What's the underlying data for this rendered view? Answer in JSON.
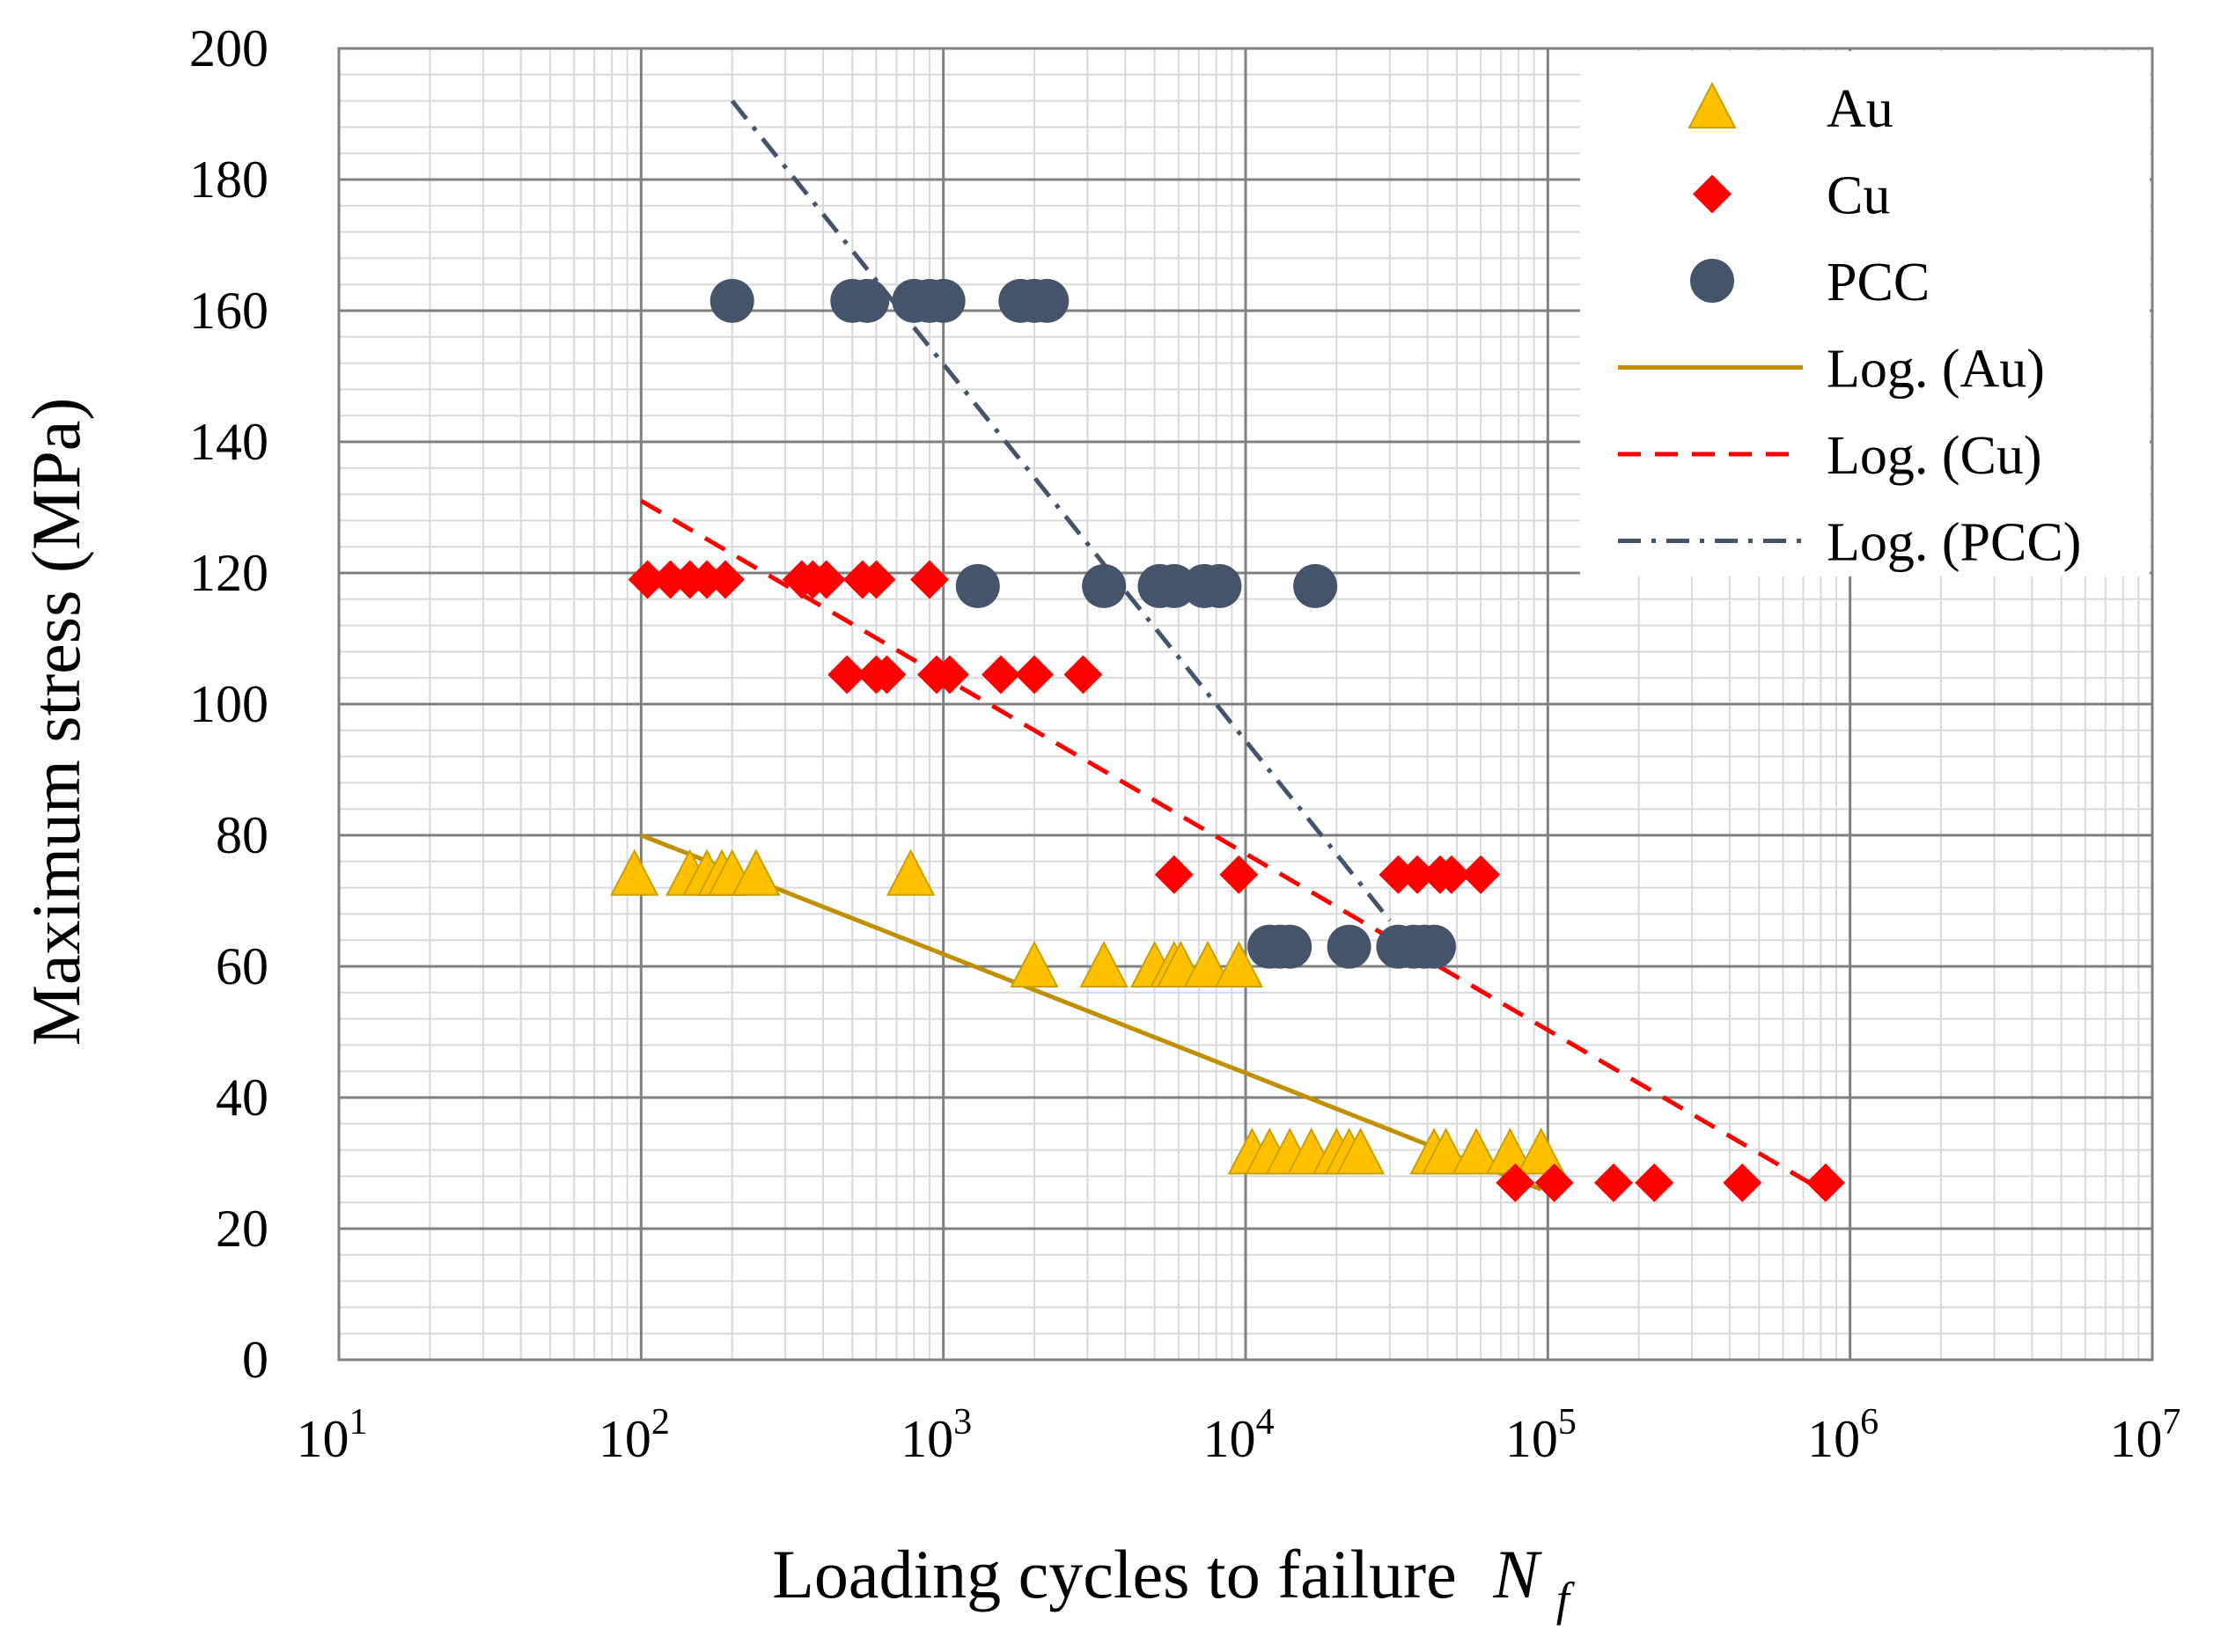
{
  "chart_data": {
    "type": "scatter",
    "title": "",
    "xlabel": "Loading cycles to failure",
    "xlabel_symbol": "N",
    "xlabel_subscript": "f",
    "ylabel": "Maximum stress (MPa)",
    "xscale": "log",
    "xlim": [
      10,
      10000000
    ],
    "ylim": [
      0,
      200
    ],
    "x_ticks": [
      {
        "base": "10",
        "exp": "1"
      },
      {
        "base": "10",
        "exp": "2"
      },
      {
        "base": "10",
        "exp": "3"
      },
      {
        "base": "10",
        "exp": "4"
      },
      {
        "base": "10",
        "exp": "5"
      },
      {
        "base": "10",
        "exp": "6"
      },
      {
        "base": "10",
        "exp": "7"
      }
    ],
    "y_ticks": [
      "0",
      "20",
      "40",
      "60",
      "80",
      "100",
      "120",
      "140",
      "160",
      "180",
      "200"
    ],
    "grid": true,
    "legend_position": "top-right",
    "series": [
      {
        "name": "Au",
        "marker": "triangle",
        "color": "#FFC000",
        "stroke": "#C9A000",
        "points": [
          [
            95,
            74
          ],
          [
            145,
            74
          ],
          [
            165,
            74
          ],
          [
            185,
            74
          ],
          [
            200,
            74
          ],
          [
            240,
            74
          ],
          [
            780,
            74
          ],
          [
            2000,
            60
          ],
          [
            3400,
            60
          ],
          [
            5000,
            60
          ],
          [
            5800,
            60
          ],
          [
            6100,
            60
          ],
          [
            7500,
            60
          ],
          [
            9500,
            60
          ],
          [
            10500,
            31.5
          ],
          [
            12000,
            31.5
          ],
          [
            14000,
            31.5
          ],
          [
            16500,
            31.5
          ],
          [
            20000,
            31.5
          ],
          [
            22000,
            31.5
          ],
          [
            24000,
            31.5
          ],
          [
            42000,
            31.5
          ],
          [
            46000,
            31.5
          ],
          [
            58000,
            31.5
          ],
          [
            75000,
            31.5
          ],
          [
            95000,
            31.5
          ]
        ]
      },
      {
        "name": "Cu",
        "marker": "diamond",
        "color": "#FF0000",
        "points": [
          [
            105,
            119
          ],
          [
            125,
            119
          ],
          [
            145,
            119
          ],
          [
            165,
            119
          ],
          [
            190,
            119
          ],
          [
            340,
            119
          ],
          [
            370,
            119
          ],
          [
            410,
            119
          ],
          [
            540,
            119
          ],
          [
            600,
            119
          ],
          [
            900,
            119
          ],
          [
            480,
            104.5
          ],
          [
            600,
            104.5
          ],
          [
            650,
            104.5
          ],
          [
            950,
            104.5
          ],
          [
            1050,
            104.5
          ],
          [
            1550,
            104.5
          ],
          [
            2000,
            104.5
          ],
          [
            2900,
            104.5
          ],
          [
            5800,
            74
          ],
          [
            9500,
            74
          ],
          [
            32000,
            74
          ],
          [
            37000,
            74
          ],
          [
            44000,
            74
          ],
          [
            48000,
            74
          ],
          [
            60000,
            74
          ],
          [
            78000,
            27
          ],
          [
            105000,
            27
          ],
          [
            165000,
            27
          ],
          [
            225000,
            27
          ],
          [
            440000,
            27
          ],
          [
            830000,
            27
          ]
        ]
      },
      {
        "name": "PCC",
        "marker": "circle",
        "color": "#44546A",
        "points": [
          [
            200,
            161.5
          ],
          [
            500,
            161.5
          ],
          [
            560,
            161.5
          ],
          [
            800,
            161.5
          ],
          [
            900,
            161.5
          ],
          [
            1000,
            161.5
          ],
          [
            1800,
            161.5
          ],
          [
            2000,
            161.5
          ],
          [
            2200,
            161.5
          ],
          [
            1300,
            118
          ],
          [
            3400,
            118
          ],
          [
            5200,
            118
          ],
          [
            5800,
            118
          ],
          [
            7300,
            118
          ],
          [
            8200,
            118
          ],
          [
            17000,
            118
          ],
          [
            12000,
            63
          ],
          [
            13000,
            63
          ],
          [
            14000,
            63
          ],
          [
            22000,
            63
          ],
          [
            32000,
            63
          ],
          [
            36000,
            63
          ],
          [
            39000,
            63
          ],
          [
            42000,
            63
          ]
        ]
      },
      {
        "name": "Log. (Au)",
        "type": "trendline",
        "style": "solid",
        "color": "#BF9000",
        "points": [
          [
            100,
            80
          ],
          [
            95000,
            26
          ]
        ]
      },
      {
        "name": "Log. (Cu)",
        "type": "trendline",
        "style": "dashed",
        "color": "#FF0000",
        "points": [
          [
            100,
            131
          ],
          [
            800000,
            26
          ]
        ]
      },
      {
        "name": "Log. (PCC)",
        "type": "trendline",
        "style": "dashdot",
        "color": "#44546A",
        "points": [
          [
            200,
            192
          ],
          [
            30000,
            67
          ]
        ]
      }
    ]
  }
}
